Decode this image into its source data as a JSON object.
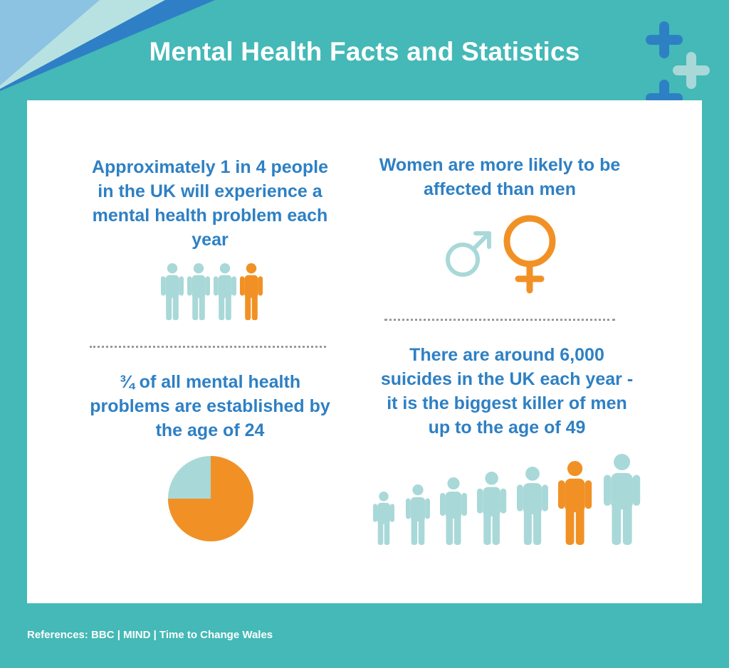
{
  "title": "Mental Health Facts and Statistics",
  "colors": {
    "teal": "#44b9b7",
    "blue": "#2e80c4",
    "orange": "#f19125",
    "pale": "#a9d8d8",
    "white": "#ffffff"
  },
  "icons": [
    "plus-icon",
    "person-icon",
    "male-symbol-icon",
    "female-symbol-icon",
    "pie-chart"
  ],
  "facts": {
    "one_in_four": {
      "text": "Approximately 1 in 4 people in the UK will experience a mental health problem each year",
      "figures_total": 4,
      "figures_highlighted_index": 3
    },
    "women": {
      "text": "Women are more likely to be affected than men"
    },
    "three_quarters": {
      "text": "¾ of all mental health problems are established by the age of 24",
      "pie_fraction": 0.75
    },
    "suicides": {
      "text": "There are around 6,000 suicides in the UK each year - it is the biggest killer of men up to the age of 49",
      "figures_total": 7,
      "figures_highlighted_index": 5
    }
  },
  "references": "References: BBC  |  MIND  |  Time to Change Wales"
}
